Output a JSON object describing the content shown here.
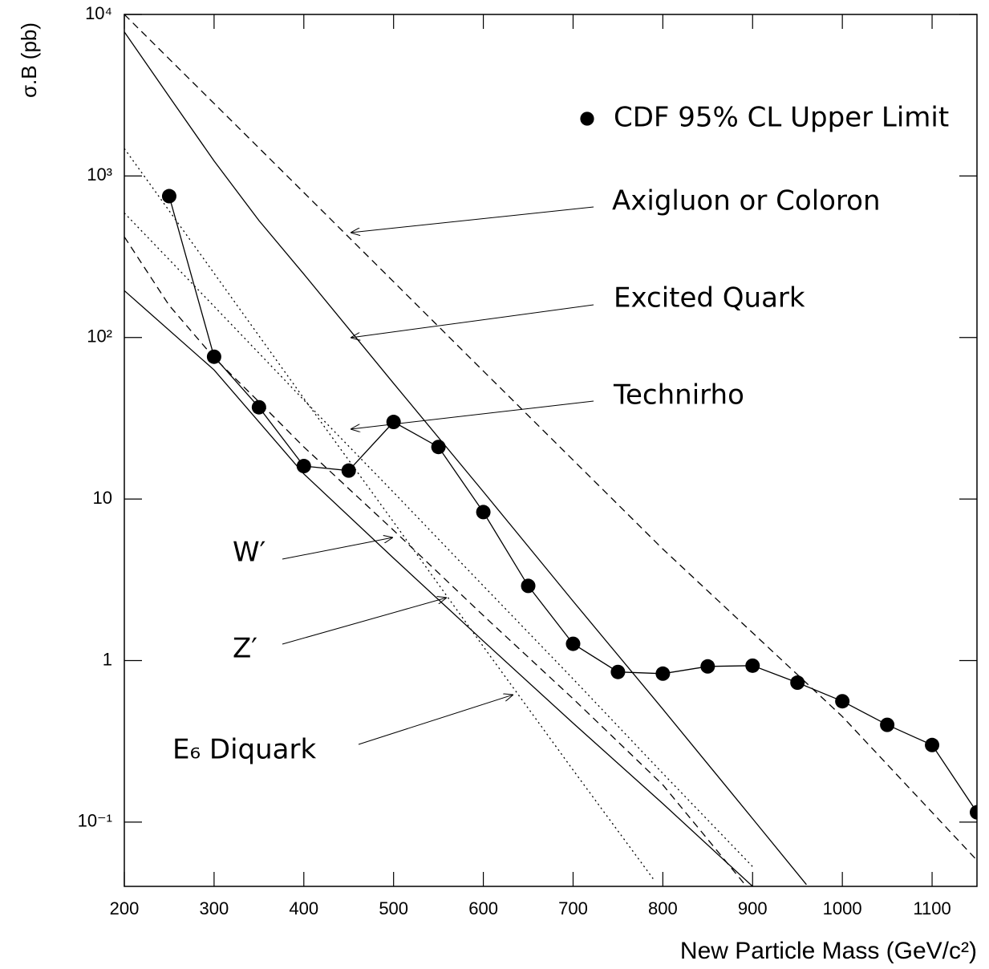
{
  "chart_data": {
    "type": "line",
    "xlabel": "New Particle Mass (GeV/c²)",
    "ylabel": "σ.B (pb)",
    "xlim": [
      200,
      1150
    ],
    "ylim": [
      0.04,
      10000
    ],
    "log_y": true,
    "xticks": [
      200,
      300,
      400,
      500,
      600,
      700,
      800,
      900,
      1000,
      1100
    ],
    "yticks": [
      {
        "value": 10000,
        "label": "10⁴"
      },
      {
        "value": 1000,
        "label": "10³"
      },
      {
        "value": 100,
        "label": "10²"
      },
      10,
      1,
      {
        "value": 0.1,
        "label": "10⁻¹"
      }
    ],
    "series": [
      {
        "name": "CDF 95% CL Upper Limit",
        "color": "#000000",
        "style": "marker",
        "x": [
          250,
          300,
          350,
          400,
          450,
          500,
          550,
          600,
          650,
          700,
          750,
          800,
          850,
          900,
          950,
          1000,
          1050,
          1100,
          1150
        ],
        "values": [
          750,
          76,
          37,
          16,
          15,
          30,
          21,
          8.3,
          2.9,
          1.27,
          0.85,
          0.83,
          0.92,
          0.93,
          0.73,
          0.56,
          0.4,
          0.3,
          0.115
        ]
      },
      {
        "name": "Axigluon or Coloron",
        "color": "#000000",
        "style": "dashed",
        "x": [
          200,
          400,
          600,
          800,
          1000,
          1150
        ],
        "values": [
          10000,
          790,
          62,
          4.9,
          0.45,
          0.058
        ]
      },
      {
        "name": "Excited Quark",
        "color": "#000000",
        "style": "solid",
        "x": [
          200,
          250,
          300,
          350,
          400,
          500,
          600,
          700,
          800,
          900,
          960
        ],
        "values": [
          7800,
          3100,
          1240,
          530,
          247,
          52,
          11.1,
          2.33,
          0.5,
          0.105,
          0.041
        ]
      },
      {
        "name": "Technirho",
        "color": "#000000",
        "style": "dashed",
        "x": [
          200,
          250,
          300,
          350,
          400,
          500,
          600,
          700,
          800,
          890
        ],
        "values": [
          420,
          158,
          75,
          40,
          21,
          6.4,
          1.9,
          0.58,
          0.17,
          0.042
        ]
      },
      {
        "name": "W′",
        "color": "#000000",
        "style": "dotted",
        "x": [
          200,
          300,
          400,
          500,
          600,
          700,
          800,
          900
        ],
        "values": [
          590,
          156,
          41,
          11,
          2.9,
          0.77,
          0.2,
          0.053
        ]
      },
      {
        "name": "Z′",
        "color": "#000000",
        "style": "solid",
        "x": [
          200,
          300,
          400,
          500,
          600,
          700,
          800,
          900
        ],
        "values": [
          195,
          63,
          14.3,
          4.3,
          1.32,
          0.41,
          0.13,
          0.04
        ]
      },
      {
        "name": "E₆ Diquark",
        "color": "#000000",
        "style": "dotted",
        "x": [
          200,
          300,
          400,
          500,
          600,
          700,
          790
        ],
        "values": [
          1480,
          250,
          42,
          7.2,
          1.22,
          0.21,
          0.044
        ]
      }
    ]
  }
}
